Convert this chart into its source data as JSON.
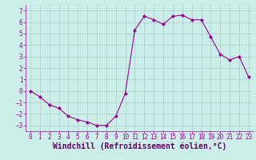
{
  "x": [
    0,
    1,
    2,
    3,
    4,
    5,
    6,
    7,
    8,
    9,
    10,
    11,
    12,
    13,
    14,
    15,
    16,
    17,
    18,
    19,
    20,
    21,
    22,
    23
  ],
  "y": [
    0.0,
    -0.5,
    -1.2,
    -1.5,
    -2.2,
    -2.5,
    -2.7,
    -3.0,
    -3.0,
    -2.2,
    -0.2,
    5.3,
    6.5,
    6.2,
    5.8,
    6.5,
    6.6,
    6.2,
    6.2,
    4.7,
    3.2,
    2.7,
    3.0,
    1.2
  ],
  "line_color": "#990099",
  "marker_color": "#990099",
  "bg_color": "#cceee8",
  "grid_color": "#aacccc",
  "xlabel": "Windchill (Refroidissement éolien,°C)",
  "xlabel_color": "#660066",
  "xlim": [
    -0.5,
    23.5
  ],
  "ylim": [
    -3.5,
    7.5
  ],
  "xticks": [
    0,
    1,
    2,
    3,
    4,
    5,
    6,
    7,
    8,
    9,
    10,
    11,
    12,
    13,
    14,
    15,
    16,
    17,
    18,
    19,
    20,
    21,
    22,
    23
  ],
  "yticks": [
    -3,
    -2,
    -1,
    0,
    1,
    2,
    3,
    4,
    5,
    6,
    7
  ],
  "tick_color": "#990099",
  "tick_fontsize": 5.5,
  "xlabel_fontsize": 7.0
}
